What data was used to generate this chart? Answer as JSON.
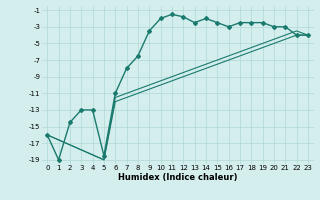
{
  "xlabel": "Humidex (Indice chaleur)",
  "bg_color": "#d4eeed",
  "grid_color": "#b0d8d5",
  "line_color": "#1a7a6e",
  "xlim": [
    -0.5,
    23.5
  ],
  "ylim": [
    -19.5,
    -0.5
  ],
  "xticks": [
    0,
    1,
    2,
    3,
    4,
    5,
    6,
    7,
    8,
    9,
    10,
    11,
    12,
    13,
    14,
    15,
    16,
    17,
    18,
    19,
    20,
    21,
    22,
    23
  ],
  "yticks": [
    -19,
    -17,
    -15,
    -13,
    -11,
    -9,
    -7,
    -5,
    -3,
    -1
  ],
  "series1_x": [
    0,
    1,
    2,
    3,
    4,
    5,
    6,
    7,
    8,
    9,
    10,
    11,
    12,
    13,
    14,
    15,
    16,
    17,
    18,
    19,
    20,
    21,
    22,
    23
  ],
  "series1_y": [
    -16,
    -19,
    -14.5,
    -13,
    -13,
    -18.5,
    -11,
    -8,
    -6.5,
    -3.5,
    -2,
    -1.5,
    -1.8,
    -2.5,
    -2,
    -2.5,
    -3,
    -2.5,
    -2.5,
    -2.5,
    -3,
    -3,
    -4,
    -4
  ],
  "series2_x": [
    0,
    5,
    6,
    7,
    8,
    9,
    10,
    11,
    12,
    13,
    14,
    15,
    16,
    17,
    18,
    19,
    20,
    21,
    22,
    23
  ],
  "series2_y": [
    -16,
    -19,
    -12,
    -11.5,
    -11,
    -10.5,
    -10,
    -9.5,
    -9,
    -8.5,
    -8,
    -7.5,
    -7,
    -6.5,
    -6,
    -5.5,
    -5,
    -4.5,
    -4,
    -4
  ],
  "series3_x": [
    0,
    5,
    6,
    7,
    8,
    9,
    10,
    11,
    12,
    13,
    14,
    15,
    16,
    17,
    18,
    19,
    20,
    21,
    22,
    23
  ],
  "series3_y": [
    -16,
    -19,
    -11.5,
    -11.0,
    -10.5,
    -10.0,
    -9.5,
    -9.0,
    -8.5,
    -8.0,
    -7.5,
    -7.0,
    -6.5,
    -6.0,
    -5.5,
    -5.0,
    -4.5,
    -4.0,
    -3.5,
    -4
  ]
}
